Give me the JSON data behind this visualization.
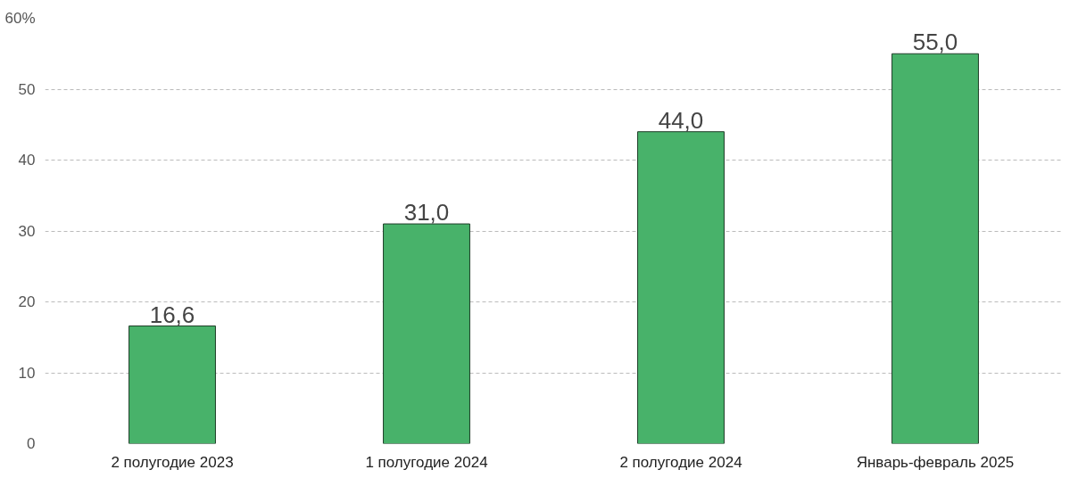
{
  "chart_data": {
    "type": "bar",
    "categories": [
      "2 полугодие 2023",
      "1 полугодие 2024",
      "2 полугодие 2024",
      "Январь-февраль 2025"
    ],
    "values": [
      16.6,
      31.0,
      44.0,
      55.0
    ],
    "value_labels": [
      "16,6",
      "31,0",
      "44,0",
      "55,0"
    ],
    "color": "#48b26a",
    "ylim": [
      0,
      60
    ],
    "yticks": [
      0,
      10,
      20,
      30,
      40,
      50,
      {
        "value": 60,
        "label": "60%"
      }
    ],
    "grid": "y"
  }
}
